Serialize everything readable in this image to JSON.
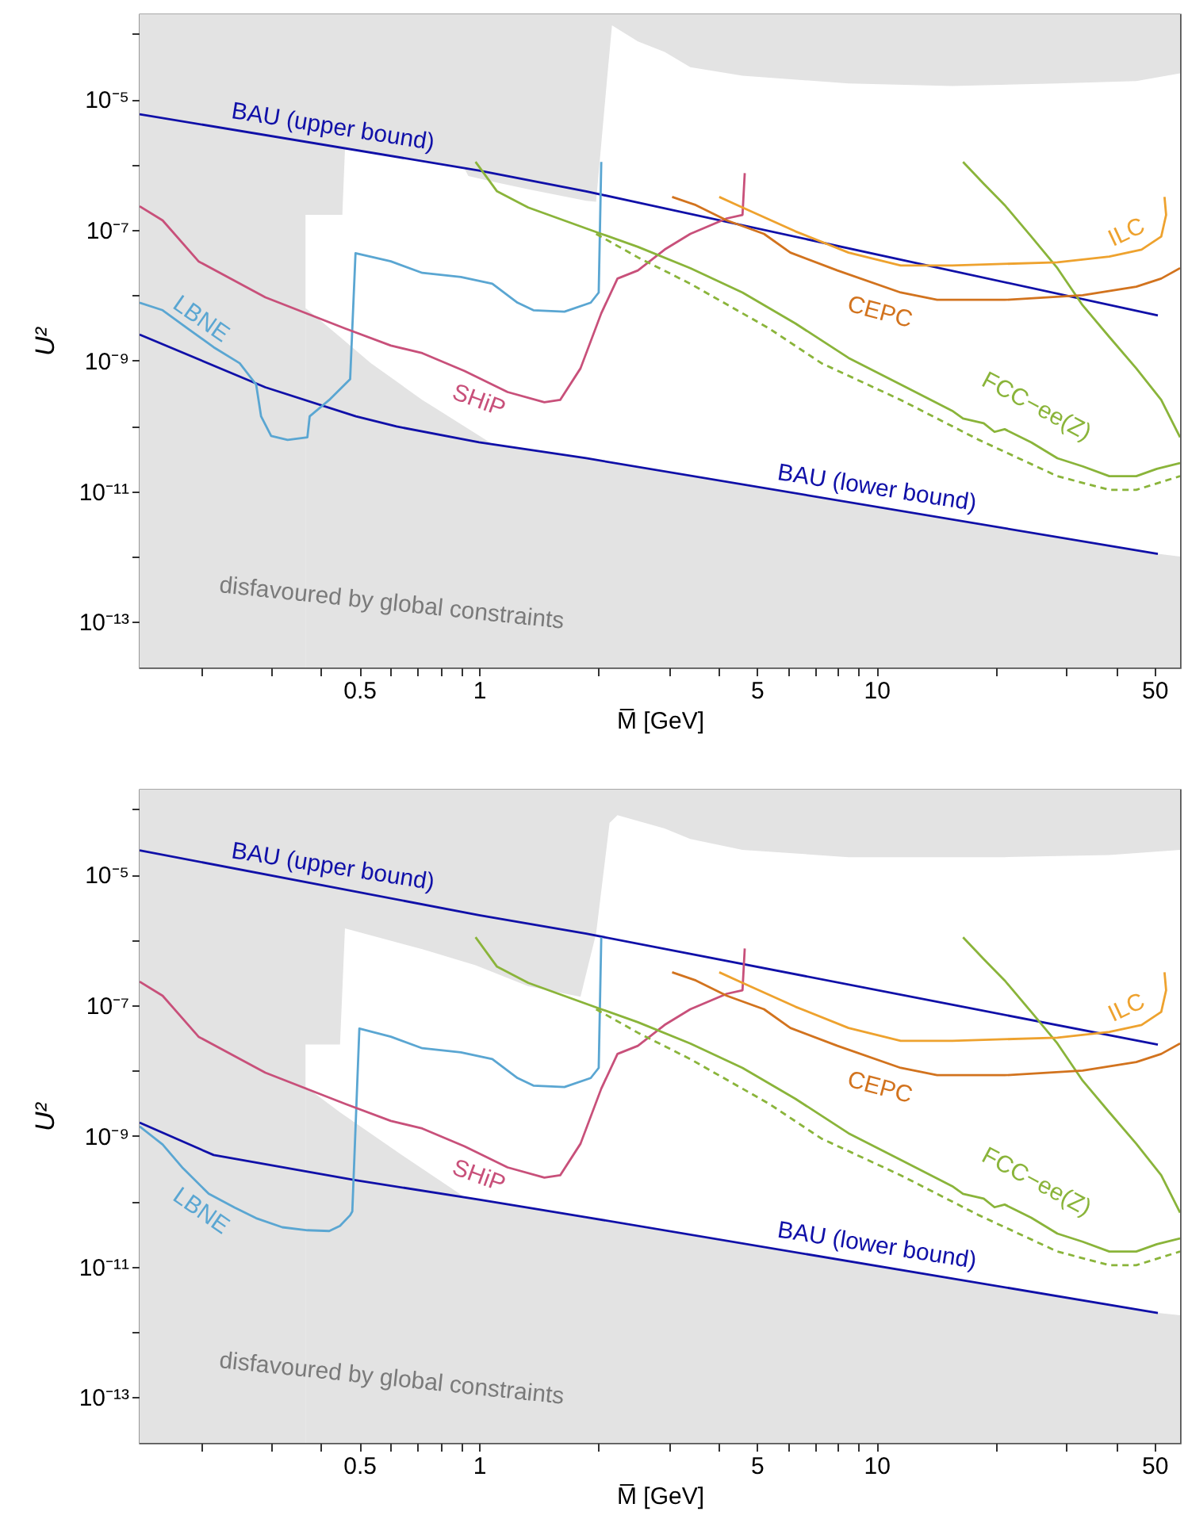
{
  "chart_data": [
    {
      "type": "line",
      "xlabel": "M̅ [GeV]",
      "ylabel": "U²",
      "log": "xy",
      "xlim": [
        0.14,
        58
      ],
      "ylim": [
        2e-14,
        0.0002
      ],
      "xticks": [
        {
          "value": 0.2,
          "label": null
        },
        {
          "value": 0.3,
          "label": null
        },
        {
          "value": 0.4,
          "label": null
        },
        0.5,
        {
          "value": 0.6,
          "label": null
        },
        {
          "value": 0.7,
          "label": null
        },
        {
          "value": 0.8,
          "label": null
        },
        {
          "value": 0.9,
          "label": null
        },
        1,
        {
          "value": 2,
          "label": null
        },
        {
          "value": 3,
          "label": null
        },
        {
          "value": 4,
          "label": null
        },
        5,
        {
          "value": 6,
          "label": null
        },
        {
          "value": 7,
          "label": null
        },
        {
          "value": 8,
          "label": null
        },
        {
          "value": 9,
          "label": null
        },
        10,
        {
          "value": 20,
          "label": null
        },
        {
          "value": 30,
          "label": null
        },
        {
          "value": 40,
          "label": null
        },
        50
      ],
      "yticks": [
        {
          "value": 0.0001,
          "label": null
        },
        {
          "value": 1e-05,
          "label": "10⁻⁵"
        },
        {
          "value": 1e-06,
          "label": null
        },
        {
          "value": 1e-07,
          "label": "10⁻⁷"
        },
        {
          "value": 1e-08,
          "label": null
        },
        {
          "value": 1e-09,
          "label": "10⁻⁹"
        },
        {
          "value": 1e-10,
          "label": null
        },
        {
          "value": 1e-11,
          "label": "10⁻¹¹"
        },
        {
          "value": 1e-12,
          "label": null
        },
        {
          "value": 1e-13,
          "label": "10⁻¹³"
        }
      ],
      "annotations": [
        "disfavoured by global constraints"
      ],
      "bands": [
        {
          "axis": "y",
          "from": 2e-14,
          "to": 0.0002,
          "color": "#e3e3e3"
        }
      ],
      "series": [
        {
          "type": "area",
          "color": "#ffffff",
          "x": [
            0.366,
            0.453,
            0.46,
            0.535,
            0.72,
            0.92,
            0.94,
            1.08,
            1.33,
            1.86,
            1.97,
            2.1,
            2.16,
            2.51,
            2.93,
            3.4,
            4.6,
            8.5,
            15.5,
            28.5,
            45,
            58
          ],
          "values": [
            1.7e-07,
            1.7e-07,
            1.7e-06,
            1.55e-06,
            1.15e-06,
            8.6e-07,
            6.7e-07,
            5.5e-07,
            4.2e-07,
            2.8e-07,
            2.7e-07,
            2.1e-05,
            0.000135,
            7.7e-05,
            5.3e-05,
            3.1e-05,
            2.3e-05,
            1.75e-05,
            1.6e-05,
            1.75e-05,
            1.9e-05,
            2.5e-05
          ]
        },
        {
          "type": "area",
          "color": "#e3e3e3",
          "x": [
            0.366,
            0.447,
            0.535,
            0.72,
            1.08,
            1.86,
            51,
            58
          ],
          "values": [
            6.4e-09,
            2.3e-09,
            9.1e-10,
            2.5e-10,
            5.3e-11,
            3.2e-11,
            1.1e-12,
            1e-12
          ]
        },
        {
          "name": "BAU (upper bound)",
          "color": "#1010a8",
          "x": [
            0.14,
            1,
            1.86,
            51
          ],
          "values": [
            5.9e-06,
            8.1e-07,
            3.9e-07,
            4.9e-09
          ]
        },
        {
          "name": "BAU (lower bound)",
          "color": "#1010a8",
          "x": [
            0.14,
            0.29,
            0.49,
            0.62,
            1,
            1.86,
            51
          ],
          "values": [
            2.5e-09,
            3.9e-10,
            1.4e-10,
            9.8e-11,
            5.6e-11,
            3.2e-11,
            1.1e-12
          ]
        },
        {
          "name": "LBNE",
          "color": "#5aa6d2",
          "x": [
            0.14,
            0.16,
            0.185,
            0.215,
            0.25,
            0.275,
            0.283,
            0.3,
            0.33,
            0.37,
            0.375,
            0.42,
            0.474,
            0.489,
            0.6,
            0.72,
            0.9,
            1.08,
            1.25,
            1.37,
            1.64,
            1.91,
            2.0,
            2.03
          ],
          "values": [
            7.7e-09,
            5.9e-09,
            3.1e-09,
            1.6e-09,
            9.1e-10,
            4.3e-10,
            1.4e-10,
            7e-11,
            6.1e-11,
            6.7e-11,
            1.4e-10,
            2.5e-10,
            5.2e-10,
            4.4e-08,
            3.3e-08,
            2.2e-08,
            1.9e-08,
            1.5e-08,
            7.7e-09,
            5.9e-09,
            5.6e-09,
            7.7e-09,
            1.1e-08,
            1.1e-06
          ]
        },
        {
          "name": "SHiP",
          "color": "#c8507a",
          "x": [
            0.14,
            0.16,
            0.197,
            0.29,
            0.46,
            0.6,
            0.72,
            0.92,
            1.18,
            1.46,
            1.6,
            1.8,
            2.03,
            2.23,
            2.51,
            2.93,
            3.4,
            4.2,
            4.6,
            4.66
          ],
          "values": [
            2.3e-07,
            1.4e-07,
            3.3e-08,
            9.3e-09,
            3.1e-09,
            1.7e-09,
            1.3e-09,
            6.9e-10,
            3.3e-10,
            2.3e-10,
            2.5e-10,
            7.6e-10,
            5.3e-09,
            1.8e-08,
            2.4e-08,
            5e-08,
            8.7e-08,
            1.5e-07,
            1.7e-07,
            7.4e-07
          ]
        },
        {
          "name": "FCC−ee(Z)",
          "color": "#8ab43a",
          "x": [
            0.98,
            1.11,
            1.33,
            2.03,
            2.51,
            3.4,
            4.6,
            6.25,
            8.5,
            11.5,
            15.5,
            16.5,
            18.6,
            19.8,
            21,
            24.5,
            28.5,
            33,
            38.5,
            45,
            50.7,
            58
          ],
          "values": [
            1.1e-06,
            3.9e-07,
            2.2e-07,
            8.7e-08,
            5.5e-08,
            2.6e-08,
            1.1e-08,
            3.7e-09,
            1.1e-09,
            4.3e-10,
            1.7e-10,
            1.3e-10,
            1.1e-10,
            8.1e-11,
            8.9e-11,
            5.6e-11,
            3.2e-11,
            2.4e-11,
            1.7e-11,
            1.7e-11,
            2.2e-11,
            2.7e-11
          ]
        },
        {
          "color": "#8ab43a",
          "line_style": "dashed",
          "x": [
            1.97,
            2.51,
            3.4,
            5.37,
            7.27,
            11.5,
            18.1,
            28.5,
            38.5,
            45,
            58
          ],
          "values": [
            8.7e-08,
            3.8e-08,
            1.5e-08,
            3.1e-09,
            9.1e-10,
            2.5e-10,
            6.1e-11,
            1.7e-11,
            1.05e-11,
            1.05e-11,
            1.7e-11
          ]
        },
        {
          "color": "#8ab43a",
          "x": [
            16.5,
            18.6,
            21,
            24.5,
            28.5,
            33,
            38.5,
            45,
            52,
            58
          ],
          "values": [
            1.1e-06,
            5.1e-07,
            2.4e-07,
            7.9e-08,
            2.6e-08,
            7e-09,
            2.3e-09,
            7.6e-10,
            2.5e-10,
            6.7e-11
          ]
        },
        {
          "name": "CEPC",
          "color": "#d2731e",
          "x": [
            3.06,
            3.51,
            4.2,
            5.21,
            6.07,
            7.97,
            11.5,
            14.2,
            21,
            33,
            45,
            52,
            58
          ],
          "values": [
            3.2e-07,
            2.4e-07,
            1.4e-07,
            8.7e-08,
            4.5e-08,
            2.4e-08,
            1.1e-08,
            8.5e-09,
            8.5e-09,
            1e-08,
            1.35e-08,
            1.8e-08,
            2.6e-08
          ]
        },
        {
          "name": "ILC",
          "color": "#eea22e",
          "x": [
            4.02,
            4.6,
            6.25,
            8.5,
            11.5,
            15.5,
            28.5,
            38.5,
            46.4,
            52,
            53.5,
            53
          ],
          "values": [
            3.2e-07,
            2.2e-07,
            9.5e-08,
            4.5e-08,
            2.85e-08,
            2.85e-08,
            3.2e-08,
            3.9e-08,
            5e-08,
            7.9e-08,
            1.7e-07,
            3.2e-07
          ]
        }
      ]
    },
    {
      "type": "line",
      "xlabel": "M̅ [GeV]",
      "ylabel": "U²",
      "log": "xy",
      "xlim": [
        0.14,
        58
      ],
      "ylim": [
        2e-14,
        0.0002
      ],
      "xticks": [
        {
          "value": 0.2,
          "label": null
        },
        {
          "value": 0.3,
          "label": null
        },
        {
          "value": 0.4,
          "label": null
        },
        0.5,
        {
          "value": 0.6,
          "label": null
        },
        {
          "value": 0.7,
          "label": null
        },
        {
          "value": 0.8,
          "label": null
        },
        {
          "value": 0.9,
          "label": null
        },
        1,
        {
          "value": 2,
          "label": null
        },
        {
          "value": 3,
          "label": null
        },
        {
          "value": 4,
          "label": null
        },
        5,
        {
          "value": 6,
          "label": null
        },
        {
          "value": 7,
          "label": null
        },
        {
          "value": 8,
          "label": null
        },
        {
          "value": 9,
          "label": null
        },
        10,
        {
          "value": 20,
          "label": null
        },
        {
          "value": 30,
          "label": null
        },
        {
          "value": 40,
          "label": null
        },
        50
      ],
      "yticks": [
        {
          "value": 0.0001,
          "label": null
        },
        {
          "value": 1e-05,
          "label": "10⁻⁵"
        },
        {
          "value": 1e-06,
          "label": null
        },
        {
          "value": 1e-07,
          "label": "10⁻⁷"
        },
        {
          "value": 1e-08,
          "label": null
        },
        {
          "value": 1e-09,
          "label": "10⁻⁹"
        },
        {
          "value": 1e-10,
          "label": null
        },
        {
          "value": 1e-11,
          "label": "10⁻¹¹"
        },
        {
          "value": 1e-12,
          "label": null
        },
        {
          "value": 1e-13,
          "label": "10⁻¹³"
        }
      ],
      "annotations": [
        "disfavoured by global constraints"
      ],
      "bands": [
        {
          "axis": "y",
          "from": 2e-14,
          "to": 0.0002,
          "color": "#e3e3e3"
        }
      ],
      "series": [
        {
          "type": "area",
          "color": "#ffffff",
          "x": [
            0.366,
            0.447,
            0.46,
            0.72,
            0.98,
            1.33,
            1.8,
            1.97,
            2.13,
            2.23,
            2.93,
            3.4,
            4.6,
            8.5,
            21,
            38.5,
            58
          ],
          "values": [
            2.5e-08,
            2.5e-08,
            1.5e-06,
            7.2e-07,
            4.1e-07,
            1.95e-07,
            1.35e-07,
            1.25e-06,
            6.2e-05,
            8.1e-05,
            5.1e-05,
            3.5e-05,
            2.4e-05,
            1.85e-05,
            1.85e-05,
            2e-05,
            2.4e-05
          ]
        },
        {
          "type": "area",
          "color": "#e3e3e3",
          "x": [
            0.366,
            0.447,
            0.64,
            0.92,
            1.86,
            51,
            58
          ],
          "values": [
            5.7e-09,
            2.3e-09,
            5.1e-10,
            1.16e-10,
            5.5e-11,
            1.95e-12,
            1.8e-12
          ]
        },
        {
          "name": "BAU (upper bound)",
          "color": "#1010a8",
          "x": [
            0.14,
            1,
            1.86,
            51
          ],
          "values": [
            2.35e-05,
            2.4e-06,
            1.25e-06,
            2.5e-08
          ]
        },
        {
          "name": "BAU (lower bound)",
          "color": "#1010a8",
          "x": [
            0.14,
            0.215,
            0.489,
            1,
            1.86,
            51
          ],
          "values": [
            1.6e-09,
            5.1e-10,
            2.1e-10,
            1.06e-10,
            5.7e-11,
            1.95e-12
          ]
        },
        {
          "name": "LBNE",
          "color": "#5aa6d2",
          "x": [
            0.14,
            0.16,
            0.18,
            0.209,
            0.243,
            0.275,
            0.32,
            0.37,
            0.42,
            0.447,
            0.474,
            0.48,
            0.5,
            0.6,
            0.72,
            0.9,
            1.08,
            1.25,
            1.37,
            1.64,
            1.91,
            2.0,
            2.03
          ],
          "values": [
            1.4e-09,
            7.4e-10,
            3.2e-10,
            1.3e-10,
            8e-11,
            5.5e-11,
            4e-11,
            3.6e-11,
            3.5e-11,
            4.2e-11,
            6.1e-11,
            7e-11,
            4.4e-08,
            3.3e-08,
            2.2e-08,
            1.9e-08,
            1.5e-08,
            7.7e-09,
            5.9e-09,
            5.6e-09,
            7.7e-09,
            1.1e-08,
            1.1e-06
          ]
        },
        {
          "name": "SHiP",
          "color": "#c8507a",
          "x": [
            0.14,
            0.16,
            0.197,
            0.29,
            0.46,
            0.6,
            0.72,
            0.92,
            1.18,
            1.46,
            1.6,
            1.8,
            2.03,
            2.23,
            2.51,
            2.93,
            3.4,
            4.2,
            4.6,
            4.66
          ],
          "values": [
            2.3e-07,
            1.4e-07,
            3.3e-08,
            9.3e-09,
            3.1e-09,
            1.7e-09,
            1.3e-09,
            6.9e-10,
            3.3e-10,
            2.3e-10,
            2.5e-10,
            7.6e-10,
            5.3e-09,
            1.8e-08,
            2.4e-08,
            5e-08,
            8.7e-08,
            1.5e-07,
            1.7e-07,
            7.4e-07
          ]
        },
        {
          "name": "FCC−ee(Z)",
          "color": "#8ab43a",
          "x": [
            0.98,
            1.11,
            1.33,
            2.03,
            2.51,
            3.4,
            4.6,
            6.25,
            8.5,
            11.5,
            15.5,
            16.5,
            18.6,
            19.8,
            21,
            24.5,
            28.5,
            33,
            38.5,
            45,
            50.7,
            58
          ],
          "values": [
            1.1e-06,
            3.9e-07,
            2.2e-07,
            8.7e-08,
            5.5e-08,
            2.6e-08,
            1.1e-08,
            3.7e-09,
            1.1e-09,
            4.3e-10,
            1.7e-10,
            1.3e-10,
            1.1e-10,
            8.1e-11,
            8.9e-11,
            5.6e-11,
            3.2e-11,
            2.4e-11,
            1.7e-11,
            1.7e-11,
            2.2e-11,
            2.7e-11
          ]
        },
        {
          "color": "#8ab43a",
          "line_style": "dashed",
          "x": [
            1.97,
            2.51,
            3.4,
            5.37,
            7.27,
            11.5,
            18.1,
            28.5,
            38.5,
            45,
            58
          ],
          "values": [
            8.7e-08,
            3.8e-08,
            1.5e-08,
            3.1e-09,
            9.1e-10,
            2.5e-10,
            6.1e-11,
            1.7e-11,
            1.05e-11,
            1.05e-11,
            1.7e-11
          ]
        },
        {
          "color": "#8ab43a",
          "x": [
            16.5,
            18.6,
            21,
            24.5,
            28.5,
            33,
            38.5,
            45,
            52,
            58
          ],
          "values": [
            1.1e-06,
            5.1e-07,
            2.4e-07,
            7.9e-08,
            2.6e-08,
            7e-09,
            2.3e-09,
            7.6e-10,
            2.5e-10,
            6.7e-11
          ]
        },
        {
          "name": "CEPC",
          "color": "#d2731e",
          "x": [
            3.06,
            3.51,
            4.2,
            5.21,
            6.07,
            7.97,
            11.5,
            14.2,
            21,
            33,
            45,
            52,
            58
          ],
          "values": [
            3.2e-07,
            2.4e-07,
            1.4e-07,
            8.7e-08,
            4.5e-08,
            2.4e-08,
            1.1e-08,
            8.5e-09,
            8.5e-09,
            1e-08,
            1.35e-08,
            1.8e-08,
            2.6e-08
          ]
        },
        {
          "name": "ILC",
          "color": "#eea22e",
          "x": [
            4.02,
            4.6,
            6.25,
            8.5,
            11.5,
            15.5,
            28.5,
            38.5,
            46.4,
            52,
            53.5,
            53
          ],
          "values": [
            3.2e-07,
            2.2e-07,
            9.5e-08,
            4.5e-08,
            2.85e-08,
            2.85e-08,
            3.2e-08,
            3.9e-08,
            5e-08,
            7.9e-08,
            1.7e-07,
            3.2e-07
          ]
        }
      ]
    }
  ]
}
